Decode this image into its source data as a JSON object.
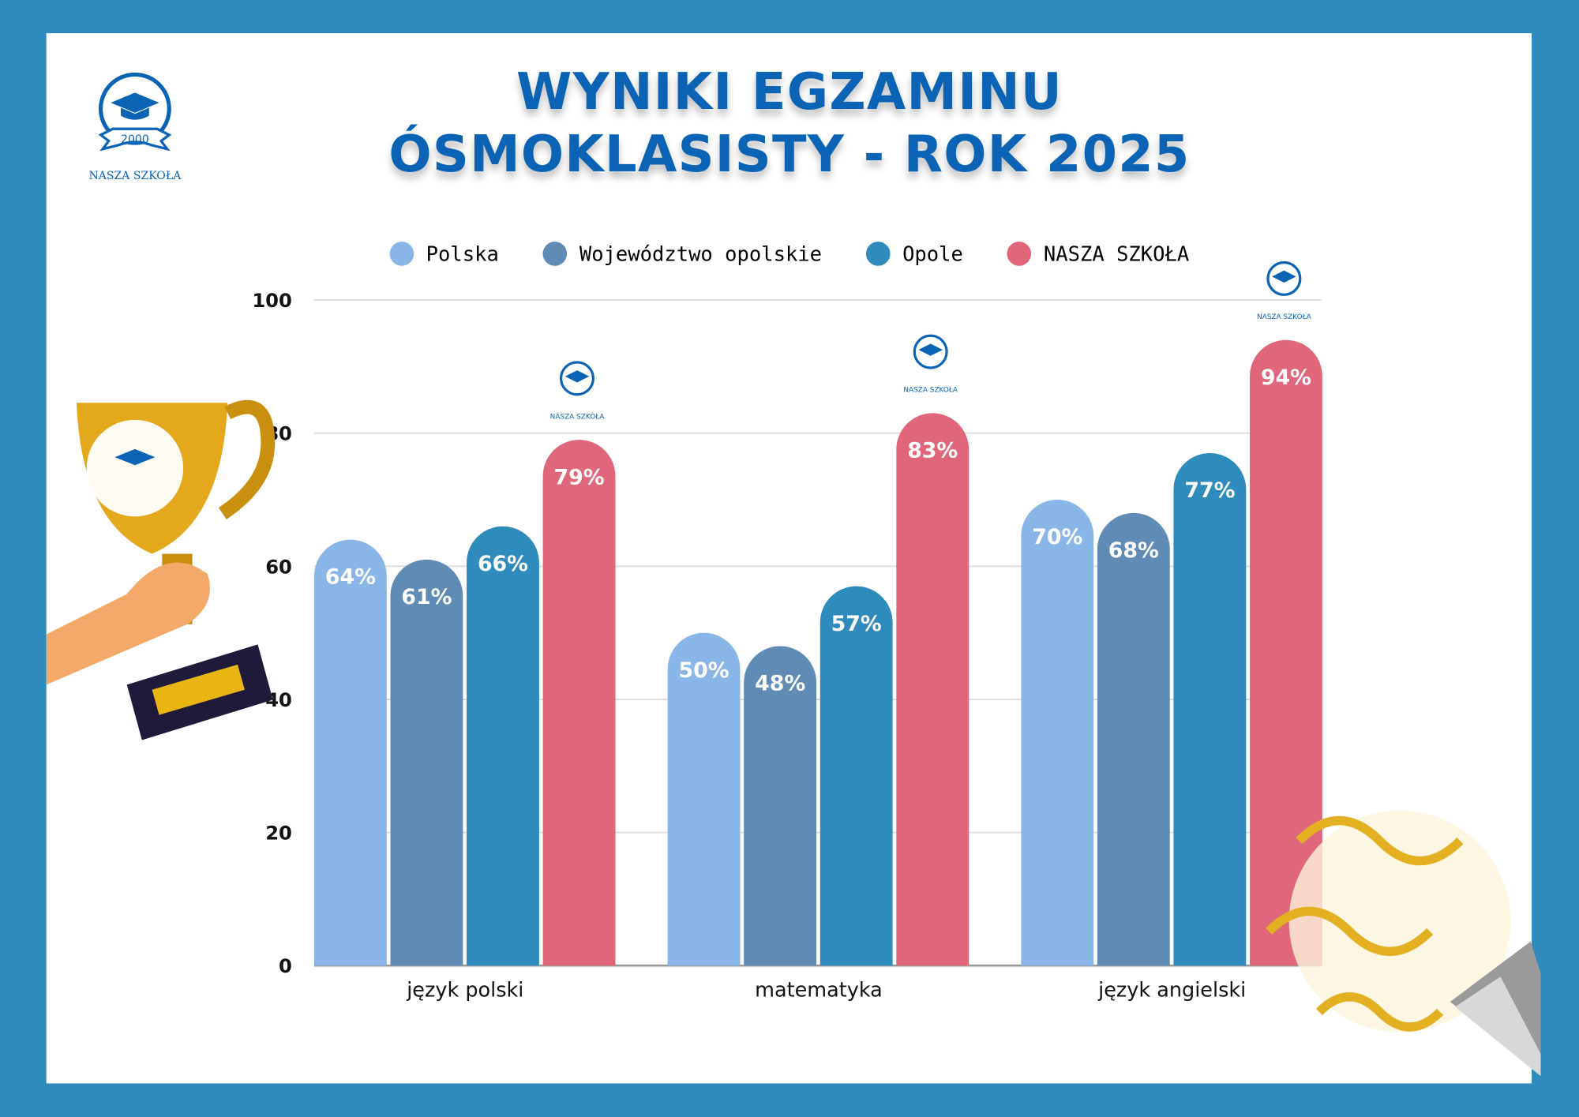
{
  "header": {
    "title_line1": "WYNIKI EGZAMINU",
    "title_line2": "ÓSMOKLASISTY - ROK 2025"
  },
  "logo": {
    "year": "2000",
    "name": "NASZA SZKOŁA"
  },
  "colors": {
    "background": "#2F8BBB",
    "title": "#0A63B5"
  },
  "chart_data": {
    "type": "bar",
    "title": "WYNIKI EGZAMINU ÓSMOKLASISTY - ROK 2025",
    "xlabel": "",
    "ylabel": "",
    "ylim": [
      0,
      100
    ],
    "yticks": [
      0,
      20,
      40,
      60,
      80,
      100
    ],
    "grid": true,
    "legend_position": "top",
    "categories": [
      "język polski",
      "matematyka",
      "język angielski"
    ],
    "series": [
      {
        "name": "Polska",
        "color": "#89B6E6",
        "values": [
          64,
          50,
          70
        ]
      },
      {
        "name": "Województwo opolskie",
        "color": "#5F8BB5",
        "values": [
          61,
          48,
          68
        ]
      },
      {
        "name": "Opole",
        "color": "#2F8BBB",
        "values": [
          66,
          57,
          77
        ]
      },
      {
        "name": "NASZA SZKOŁA",
        "color": "#E0677B",
        "values": [
          79,
          83,
          94
        ]
      }
    ],
    "value_suffix": "%"
  }
}
